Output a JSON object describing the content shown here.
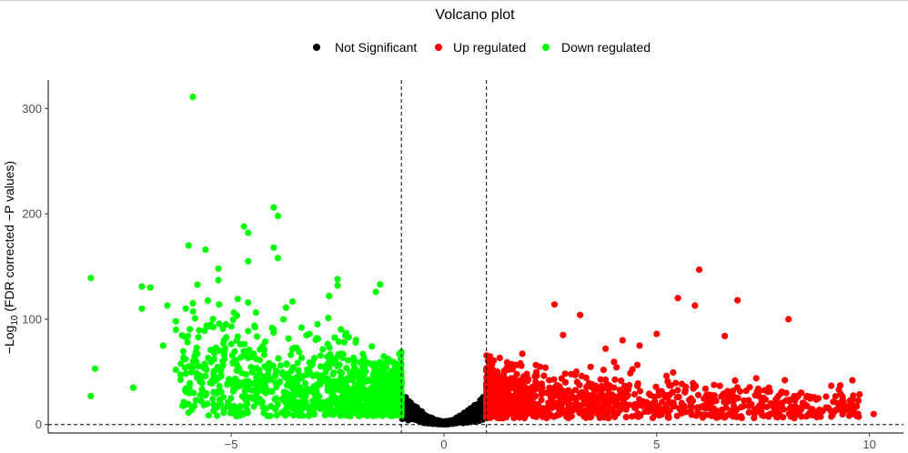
{
  "chart_data": {
    "type": "scatter",
    "title": "Volcano plot",
    "ylabel_prefix": "−Log",
    "ylabel_sub": "10",
    "ylabel_suffix": " (FDR corrected −P values)",
    "xlabel": "",
    "xlim": [
      -9.3,
      10.8
    ],
    "ylim": [
      -8,
      327
    ],
    "xticks": [
      -5,
      0,
      5,
      10
    ],
    "yticks": [
      0,
      100,
      200,
      300
    ],
    "xtick_labels": [
      "−5",
      "0",
      "5",
      "10"
    ],
    "ytick_labels": [
      "0",
      "100",
      "200",
      "300"
    ],
    "vlines": [
      -1,
      1
    ],
    "hline": 0,
    "legend_position": "top",
    "grid": false,
    "series": [
      {
        "name": "Not Significant",
        "color": "#000000",
        "x_range": [
          -1,
          1
        ],
        "points": []
      },
      {
        "name": "Up regulated",
        "color": "#ff0000",
        "x_range": [
          1,
          10.1
        ],
        "points": [
          [
            6.0,
            147
          ],
          [
            8.1,
            100
          ],
          [
            5.5,
            120
          ],
          [
            6.9,
            118
          ],
          [
            2.6,
            114
          ],
          [
            3.2,
            104
          ],
          [
            5.9,
            113
          ],
          [
            6.6,
            84
          ],
          [
            4.2,
            80
          ],
          [
            5.0,
            86
          ],
          [
            2.8,
            85
          ],
          [
            4.6,
            75
          ],
          [
            3.8,
            72
          ],
          [
            9.6,
            42
          ],
          [
            10.1,
            10
          ],
          [
            8.4,
            30
          ],
          [
            9.3,
            18
          ],
          [
            7.8,
            20
          ],
          [
            8.8,
            25
          ]
        ]
      },
      {
        "name": "Down regulated",
        "color": "#00ff00",
        "x_range": [
          -8.4,
          -1
        ],
        "points": [
          [
            -5.9,
            311
          ],
          [
            -4.0,
            206
          ],
          [
            -3.9,
            198
          ],
          [
            -4.7,
            188
          ],
          [
            -4.6,
            182
          ],
          [
            -6.0,
            170
          ],
          [
            -5.6,
            166
          ],
          [
            -4.0,
            168
          ],
          [
            -3.9,
            158
          ],
          [
            -8.3,
            139
          ],
          [
            -4.6,
            155
          ],
          [
            -5.3,
            148
          ],
          [
            -6.9,
            130
          ],
          [
            -7.1,
            131
          ],
          [
            -6.5,
            113
          ],
          [
            -5.9,
            115
          ],
          [
            -7.1,
            110
          ],
          [
            -6.3,
            98
          ],
          [
            -6.3,
            90
          ],
          [
            -8.3,
            27
          ],
          [
            -7.3,
            35
          ],
          [
            -8.2,
            53
          ],
          [
            -6.3,
            52
          ],
          [
            -5.6,
            46
          ],
          [
            -6.6,
            75
          ],
          [
            -5.4,
            62
          ],
          [
            -2.5,
            138
          ],
          [
            -2.5,
            132
          ],
          [
            -2.7,
            122
          ],
          [
            -1.5,
            133
          ],
          [
            -1.6,
            126
          ]
        ]
      }
    ]
  }
}
